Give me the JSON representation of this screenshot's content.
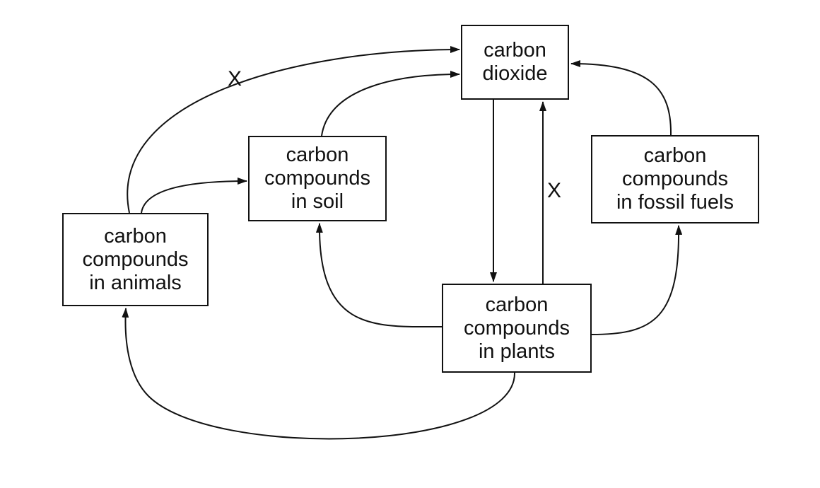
{
  "diagram": {
    "nodes": {
      "carbon_dioxide": {
        "lines": [
          "carbon",
          "dioxide"
        ]
      },
      "soil": {
        "lines": [
          "carbon",
          "compounds",
          "in soil"
        ]
      },
      "fossil_fuels": {
        "lines": [
          "carbon",
          "compounds",
          "in fossil fuels"
        ]
      },
      "animals": {
        "lines": [
          "carbon",
          "compounds",
          "in animals"
        ]
      },
      "plants": {
        "lines": [
          "carbon",
          "compounds",
          "in plants"
        ]
      }
    },
    "labels": {
      "x_animals_to_co2": "X",
      "x_plants_to_co2": "X"
    },
    "edges": [
      {
        "from": "animals",
        "to": "carbon_dioxide",
        "label": "X"
      },
      {
        "from": "animals",
        "to": "soil"
      },
      {
        "from": "soil",
        "to": "carbon_dioxide"
      },
      {
        "from": "carbon_dioxide",
        "to": "plants"
      },
      {
        "from": "plants",
        "to": "carbon_dioxide",
        "label": "X"
      },
      {
        "from": "fossil_fuels",
        "to": "carbon_dioxide"
      },
      {
        "from": "plants",
        "to": "soil"
      },
      {
        "from": "plants",
        "to": "fossil_fuels"
      },
      {
        "from": "plants",
        "to": "animals"
      }
    ]
  }
}
